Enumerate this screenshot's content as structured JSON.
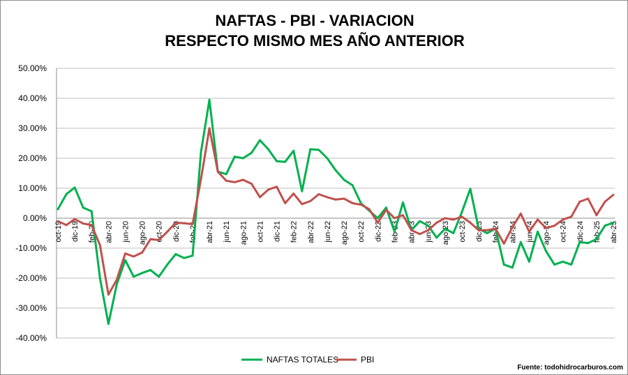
{
  "chart_data": {
    "type": "line",
    "title": [
      "NAFTAS - PBI - VARIACION",
      "RESPECTO MISMO MES AÑO ANTERIOR"
    ],
    "xlabel": "",
    "ylabel": "",
    "ylim": [
      -40,
      50
    ],
    "yticks": [
      "50.00%",
      "40.00%",
      "30.00%",
      "20.00%",
      "10.00%",
      "0.00%",
      "-10.00%",
      "-20.00%",
      "-30.00%",
      "-40.00%"
    ],
    "ytick_values": [
      50,
      40,
      30,
      20,
      10,
      0,
      -10,
      -20,
      -30,
      -40
    ],
    "grid": true,
    "legend_position": "bottom",
    "x": [
      "oct-19",
      "nov-19",
      "dic-19",
      "ene-20",
      "feb-20",
      "mar-20",
      "abr-20",
      "may-20",
      "jun-20",
      "jul-20",
      "ago-20",
      "sep-20",
      "oct-20",
      "nov-20",
      "dic-20",
      "ene-21",
      "feb-21",
      "mar-21",
      "abr-21",
      "may-21",
      "jun-21",
      "jul-21",
      "ago-21",
      "sep-21",
      "oct-21",
      "nov-21",
      "dic-21",
      "ene-22",
      "feb-22",
      "mar-22",
      "abr-22",
      "may-22",
      "jun-22",
      "jul-22",
      "ago-22",
      "sep-22",
      "oct-22",
      "nov-22",
      "dic-22",
      "ene-23",
      "feb-23",
      "mar-23",
      "abr-23",
      "may-23",
      "jun-23",
      "jul-23",
      "ago-23",
      "sep-23",
      "oct-23",
      "nov-23",
      "dic-23",
      "ene-24",
      "feb-24",
      "mar-24",
      "abr-24",
      "may-24",
      "jun-24",
      "jul-24",
      "ago-24",
      "sep-24",
      "oct-24",
      "nov-24",
      "dic-24",
      "ene-25",
      "feb-25",
      "mar-25",
      "abr-25"
    ],
    "series": [
      {
        "name": "NAFTAS TOTALES",
        "color": "#00b04f",
        "values": [
          3,
          8,
          10.2,
          3.5,
          2.3,
          -20,
          -35.3,
          -22,
          -14,
          -19.5,
          -18.3,
          -17.3,
          -19.5,
          -15.5,
          -12,
          -13.3,
          -12.5,
          22,
          39.5,
          15.5,
          14.7,
          20.5,
          20,
          21.8,
          26,
          23,
          19,
          18.8,
          22.5,
          9,
          23,
          22.8,
          20,
          16,
          12.8,
          11,
          5,
          2.5,
          0,
          3.5,
          -4.5,
          5.2,
          -4,
          -1,
          -2.5,
          -6.5,
          -3.5,
          -5,
          2,
          9.8,
          -3.5,
          -5,
          -3.5,
          -15.5,
          -16.5,
          -8,
          -14.5,
          -4.5,
          -11,
          -15.5,
          -14.5,
          -15.5,
          -8,
          -8.3,
          -7,
          -2.5,
          -1.5
        ]
      },
      {
        "name": "PBI",
        "color": "#c0504d",
        "values": [
          -1,
          -2.3,
          -0.3,
          -1.8,
          -2.3,
          -9,
          -25.5,
          -20.5,
          -11.8,
          -12.8,
          -11.5,
          -7,
          -7.3,
          -4.5,
          -1.5,
          -1.7,
          -2,
          13,
          30,
          15.5,
          12.5,
          12,
          12.8,
          11.5,
          7,
          9.5,
          10.5,
          5,
          8.2,
          4.7,
          5.7,
          8,
          7,
          6.2,
          6.5,
          5,
          4.5,
          3,
          -1.5,
          2.8,
          0,
          1,
          -4,
          -5.3,
          -4,
          -1.5,
          0,
          -0.5,
          0.5,
          -1.5,
          -4,
          -4,
          -3.5,
          -8.5,
          -3,
          1.5,
          -4.5,
          -0.5,
          -3.3,
          -2.5,
          -0.5,
          0.5,
          5.5,
          6.5,
          1,
          5.5,
          7.8
        ]
      }
    ]
  },
  "source": "Fuente: todohidrocarburos.com"
}
